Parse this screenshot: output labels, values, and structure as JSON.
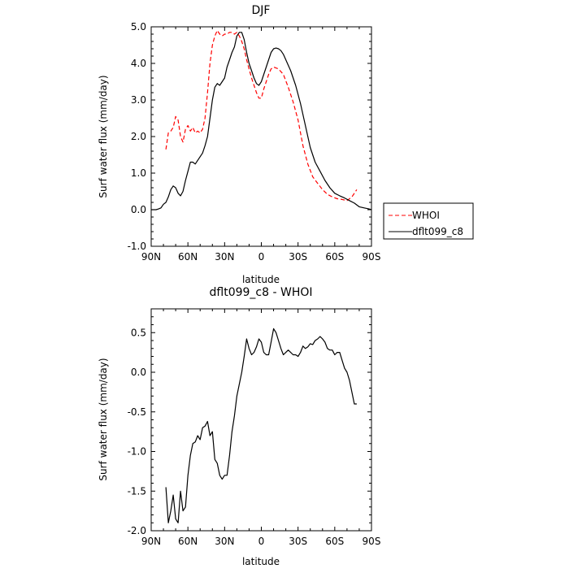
{
  "chart_data": [
    {
      "type": "line",
      "title": "DJF",
      "xlabel": "latitude",
      "ylabel": "Surf water flux (mm/day)",
      "xlim": [
        90,
        -90
      ],
      "ylim": [
        -1.0,
        5.0
      ],
      "x_ticks": [
        90,
        60,
        30,
        0,
        -30,
        -60,
        -90
      ],
      "x_tick_labels": [
        "90N",
        "60N",
        "30N",
        "0",
        "30S",
        "60S",
        "90S"
      ],
      "y_ticks": [
        -1.0,
        0.0,
        1.0,
        2.0,
        3.0,
        4.0,
        5.0
      ],
      "y_tick_labels": [
        "-1.0",
        "0.0",
        "1.0",
        "2.0",
        "3.0",
        "4.0",
        "5.0"
      ],
      "legend_position": "right",
      "series": [
        {
          "name": "WHOI",
          "color": "#ff0000",
          "dash": "dashed",
          "x": [
            78,
            76,
            74,
            72,
            70,
            68,
            66,
            64,
            62,
            60,
            58,
            56,
            54,
            52,
            50,
            48,
            46,
            44,
            42,
            40,
            38,
            36,
            34,
            32,
            30,
            28,
            26,
            24,
            22,
            20,
            18,
            16,
            14,
            12,
            10,
            8,
            6,
            4,
            2,
            0,
            -2,
            -4,
            -6,
            -8,
            -10,
            -14,
            -18,
            -22,
            -26,
            -30,
            -34,
            -38,
            -42,
            -46,
            -50,
            -54,
            -58,
            -62,
            -66,
            -70,
            -74,
            -78
          ],
          "y": [
            1.65,
            2.1,
            2.15,
            2.25,
            2.55,
            2.45,
            2.0,
            1.85,
            2.2,
            2.3,
            2.15,
            2.25,
            2.1,
            2.15,
            2.1,
            2.2,
            2.5,
            3.2,
            4.0,
            4.5,
            4.75,
            4.9,
            4.8,
            4.75,
            4.8,
            4.8,
            4.85,
            4.85,
            4.8,
            4.85,
            4.75,
            4.6,
            4.4,
            4.1,
            3.85,
            3.6,
            3.4,
            3.2,
            3.05,
            3.05,
            3.3,
            3.5,
            3.7,
            3.85,
            3.9,
            3.85,
            3.7,
            3.35,
            2.95,
            2.45,
            1.75,
            1.25,
            0.9,
            0.72,
            0.55,
            0.42,
            0.35,
            0.3,
            0.28,
            0.25,
            0.35,
            0.55
          ]
        },
        {
          "name": "dflt099_c8",
          "color": "#000000",
          "dash": "solid",
          "x": [
            90,
            86,
            84,
            82,
            80,
            78,
            76,
            74,
            72,
            70,
            68,
            66,
            64,
            62,
            60,
            58,
            56,
            54,
            52,
            50,
            48,
            46,
            44,
            42,
            40,
            38,
            36,
            34,
            32,
            30,
            28,
            26,
            24,
            22,
            20,
            18,
            16,
            14,
            12,
            10,
            8,
            6,
            4,
            2,
            0,
            -2,
            -4,
            -6,
            -8,
            -10,
            -12,
            -14,
            -16,
            -18,
            -20,
            -24,
            -28,
            -32,
            -36,
            -40,
            -44,
            -48,
            -52,
            -56,
            -60,
            -64,
            -68,
            -72,
            -76,
            -80,
            -84,
            -88,
            -90
          ],
          "y": [
            0.0,
            0.0,
            0.02,
            0.05,
            0.15,
            0.2,
            0.35,
            0.55,
            0.65,
            0.6,
            0.45,
            0.38,
            0.5,
            0.8,
            1.05,
            1.3,
            1.3,
            1.25,
            1.35,
            1.45,
            1.55,
            1.75,
            2.0,
            2.5,
            3.0,
            3.35,
            3.45,
            3.4,
            3.5,
            3.6,
            3.9,
            4.1,
            4.3,
            4.45,
            4.75,
            4.85,
            4.85,
            4.65,
            4.3,
            4.0,
            3.8,
            3.6,
            3.45,
            3.4,
            3.5,
            3.7,
            3.9,
            4.1,
            4.3,
            4.4,
            4.42,
            4.4,
            4.35,
            4.25,
            4.1,
            3.8,
            3.4,
            2.9,
            2.3,
            1.7,
            1.3,
            1.05,
            0.8,
            0.6,
            0.45,
            0.38,
            0.32,
            0.25,
            0.18,
            0.08,
            0.05,
            0.02,
            0.0
          ]
        }
      ]
    },
    {
      "type": "line",
      "title": "dflt099_c8 - WHOI",
      "xlabel": "latitude",
      "ylabel": "Surf water flux (mm/day)",
      "xlim": [
        90,
        -90
      ],
      "ylim": [
        -2.0,
        0.8
      ],
      "x_ticks": [
        90,
        60,
        30,
        0,
        -30,
        -60,
        -90
      ],
      "x_tick_labels": [
        "90N",
        "60N",
        "30N",
        "0",
        "30S",
        "60S",
        "90S"
      ],
      "y_ticks": [
        -2.0,
        -1.5,
        -1.0,
        -0.5,
        0.0,
        0.5
      ],
      "y_tick_labels": [
        "-2.0",
        "-1.5",
        "-1.0",
        "-0.5",
        "0.0",
        "0.5"
      ],
      "series": [
        {
          "color": "#000000",
          "dash": "solid",
          "x": [
            78,
            76,
            74,
            72,
            70,
            68,
            66,
            64,
            62,
            60,
            58,
            56,
            54,
            52,
            50,
            48,
            46,
            44,
            42,
            40,
            38,
            36,
            34,
            32,
            30,
            28,
            26,
            24,
            22,
            20,
            18,
            16,
            14,
            12,
            10,
            8,
            6,
            4,
            2,
            0,
            -2,
            -4,
            -6,
            -8,
            -10,
            -12,
            -14,
            -16,
            -18,
            -20,
            -22,
            -24,
            -26,
            -28,
            -30,
            -32,
            -34,
            -36,
            -38,
            -40,
            -42,
            -44,
            -46,
            -48,
            -50,
            -52,
            -54,
            -56,
            -58,
            -60,
            -62,
            -64,
            -66,
            -68,
            -70,
            -72,
            -74,
            -76,
            -78
          ],
          "y": [
            -1.45,
            -1.9,
            -1.75,
            -1.55,
            -1.85,
            -1.9,
            -1.5,
            -1.75,
            -1.7,
            -1.3,
            -1.05,
            -0.9,
            -0.88,
            -0.8,
            -0.85,
            -0.7,
            -0.68,
            -0.62,
            -0.8,
            -0.75,
            -1.1,
            -1.15,
            -1.3,
            -1.35,
            -1.3,
            -1.3,
            -1.05,
            -0.75,
            -0.55,
            -0.3,
            -0.15,
            0.0,
            0.2,
            0.42,
            0.3,
            0.22,
            0.25,
            0.32,
            0.42,
            0.38,
            0.25,
            0.22,
            0.22,
            0.38,
            0.55,
            0.5,
            0.4,
            0.3,
            0.22,
            0.25,
            0.28,
            0.25,
            0.22,
            0.22,
            0.2,
            0.25,
            0.33,
            0.3,
            0.32,
            0.36,
            0.35,
            0.4,
            0.42,
            0.45,
            0.42,
            0.38,
            0.3,
            0.28,
            0.28,
            0.22,
            0.25,
            0.25,
            0.15,
            0.05,
            0.0,
            -0.1,
            -0.25,
            -0.4,
            -0.4
          ]
        }
      ]
    }
  ]
}
